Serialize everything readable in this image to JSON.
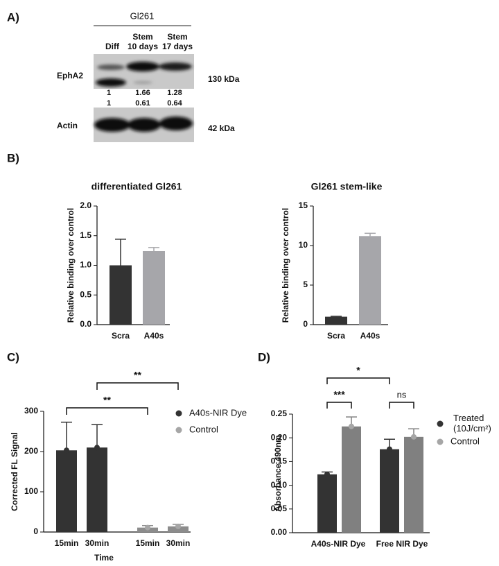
{
  "panels": [
    "A)",
    "B)",
    "C)",
    "D)"
  ],
  "blot": {
    "title": "Gl261",
    "lanes": [
      [
        "Diff"
      ],
      [
        "Stem",
        "10 days"
      ],
      [
        "Stem",
        "17 days"
      ]
    ],
    "rows": [
      "EphA2",
      "Actin"
    ],
    "sizes": [
      "130 kDa",
      "42 kDa"
    ],
    "quantification": [
      [
        1,
        1.66,
        1.28
      ],
      [
        1,
        0.61,
        0.64
      ]
    ]
  },
  "chart_data": [
    {
      "type": "bar",
      "title": "differentiated Gl261",
      "ylabel": "Relative binding over control",
      "categories": [
        "Scra",
        "A40s"
      ],
      "values": [
        1.0,
        1.24
      ],
      "errors": [
        0.44,
        0.06
      ],
      "colors": [
        "#333333",
        "#a6a6aa"
      ],
      "ylim": [
        0,
        2
      ],
      "yticks": [
        {
          "value": 0,
          "label": "0.0"
        },
        {
          "value": 0.5,
          "label": "0.5"
        },
        {
          "value": 1,
          "label": "1.0"
        },
        {
          "value": 1.5,
          "label": "1.5"
        },
        {
          "value": 2,
          "label": "2.0"
        }
      ]
    },
    {
      "type": "bar",
      "title": "Gl261 stem-like",
      "ylabel": "Relative binding over control",
      "categories": [
        "Scra",
        "A40s"
      ],
      "values": [
        1.0,
        11.2
      ],
      "errors": [
        0.05,
        0.35
      ],
      "colors": [
        "#333333",
        "#a6a6aa"
      ],
      "ylim": [
        0,
        15
      ],
      "yticks": [
        0,
        5,
        10,
        15
      ]
    },
    {
      "type": "bar",
      "ylabel": "Corrected FL Signal",
      "xlabel": "Time",
      "categories": [
        "15min",
        "30min",
        "15min",
        "30min"
      ],
      "series": [
        {
          "name": "A40s-NIR Dye",
          "color": "#333333",
          "marker_color": "#333333",
          "values": [
            203,
            210,
            null,
            null
          ],
          "errors": [
            70,
            57,
            null,
            null
          ]
        },
        {
          "name": "Control",
          "color": "#8c8c8c",
          "marker_color": "#a6a6a6",
          "values": [
            null,
            null,
            11,
            14
          ],
          "errors": [
            null,
            null,
            5,
            5
          ]
        }
      ],
      "ylim": [
        0,
        300
      ],
      "yticks": [
        0,
        100,
        200,
        300
      ],
      "annotations": [
        "**",
        "**"
      ]
    },
    {
      "type": "bar",
      "ylabel": "Absorbance 490nm",
      "categories": [
        "A40s-NIR Dye",
        "Free NIR Dye"
      ],
      "series": [
        {
          "name": "Treated (10J/cm²)",
          "color": "#333333",
          "marker_color": "#333333",
          "values": [
            0.123,
            0.176
          ],
          "errors": [
            0.005,
            0.021
          ]
        },
        {
          "name": "Control",
          "color": "#808080",
          "marker_color": "#a6a6a6",
          "values": [
            0.224,
            0.202
          ],
          "errors": [
            0.02,
            0.017
          ]
        }
      ],
      "ylim": [
        0,
        0.25
      ],
      "yticks": [
        {
          "value": 0,
          "label": "0.00"
        },
        {
          "value": 0.05,
          "label": "0.05"
        },
        {
          "value": 0.1,
          "label": "0.10"
        },
        {
          "value": 0.15,
          "label": "0.15"
        },
        {
          "value": 0.2,
          "label": "0.20"
        },
        {
          "value": 0.25,
          "label": "0.25"
        }
      ],
      "annotations": [
        "*",
        "***",
        "ns"
      ]
    }
  ]
}
